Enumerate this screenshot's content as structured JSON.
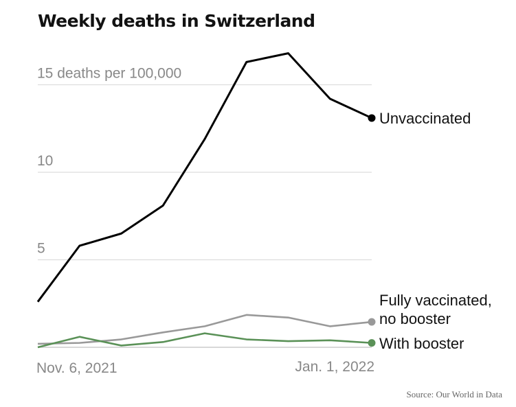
{
  "chart_data": {
    "type": "line",
    "title": "Weekly deaths in Switzerland",
    "ylabel": "deaths per 100,000",
    "ytick_labels": [
      "15 deaths per 100,000",
      "10",
      "5"
    ],
    "yticks": [
      15,
      10,
      5,
      0
    ],
    "ylim": [
      0,
      17
    ],
    "x_tick_labels": [
      "Nov. 6, 2021",
      "Jan. 1, 2022"
    ],
    "x": [
      "2021-11-06",
      "2021-11-13",
      "2021-11-20",
      "2021-11-27",
      "2021-12-04",
      "2021-12-11",
      "2021-12-18",
      "2021-12-25",
      "2022-01-01"
    ],
    "grid": true,
    "series": [
      {
        "name": "Unvaccinated",
        "color": "#000000",
        "values": [
          2.6,
          5.8,
          6.5,
          8.1,
          11.9,
          16.3,
          16.8,
          14.2,
          13.1
        ]
      },
      {
        "name": "Fully vaccinated, no booster",
        "label_lines": [
          "Fully vaccinated,",
          "no booster"
        ],
        "color": "#999999",
        "values": [
          0.2,
          0.25,
          0.45,
          0.85,
          1.2,
          1.85,
          1.7,
          1.2,
          1.45
        ]
      },
      {
        "name": "With booster",
        "color": "#5a9157",
        "values": [
          0.0,
          0.6,
          0.1,
          0.3,
          0.8,
          0.45,
          0.35,
          0.4,
          0.25
        ]
      }
    ],
    "source": "Source: Our World in Data"
  }
}
